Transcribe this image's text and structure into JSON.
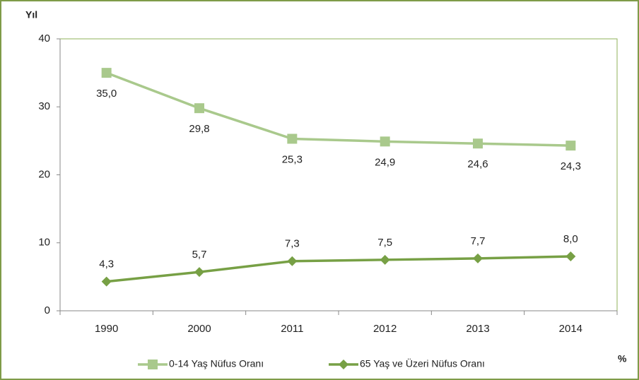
{
  "chart_data": {
    "type": "line",
    "y_label": "Yıl",
    "unit_note": "%",
    "categories": [
      "1990",
      "2000",
      "2011",
      "2012",
      "2013",
      "2014"
    ],
    "series": [
      {
        "name": "0-14 Yaş Nüfus Oranı",
        "color": "#a9c98c",
        "marker": "square",
        "values": [
          35.0,
          29.8,
          25.3,
          24.9,
          24.6,
          24.3
        ],
        "value_labels": [
          "35,0",
          "29,8",
          "25,3",
          "24,9",
          "24,6",
          "24,3"
        ]
      },
      {
        "name": "65 Yaş ve Üzeri Nüfus Oranı",
        "color": "#77a045",
        "marker": "diamond",
        "values": [
          4.3,
          5.7,
          7.3,
          7.5,
          7.7,
          8.0
        ],
        "value_labels": [
          "4,3",
          "5,7",
          "7,3",
          "7,5",
          "7,7",
          "8,0"
        ]
      }
    ],
    "ylim": [
      0,
      40
    ],
    "yticks": [
      0,
      10,
      20,
      30,
      40
    ],
    "legend": "bottom"
  }
}
